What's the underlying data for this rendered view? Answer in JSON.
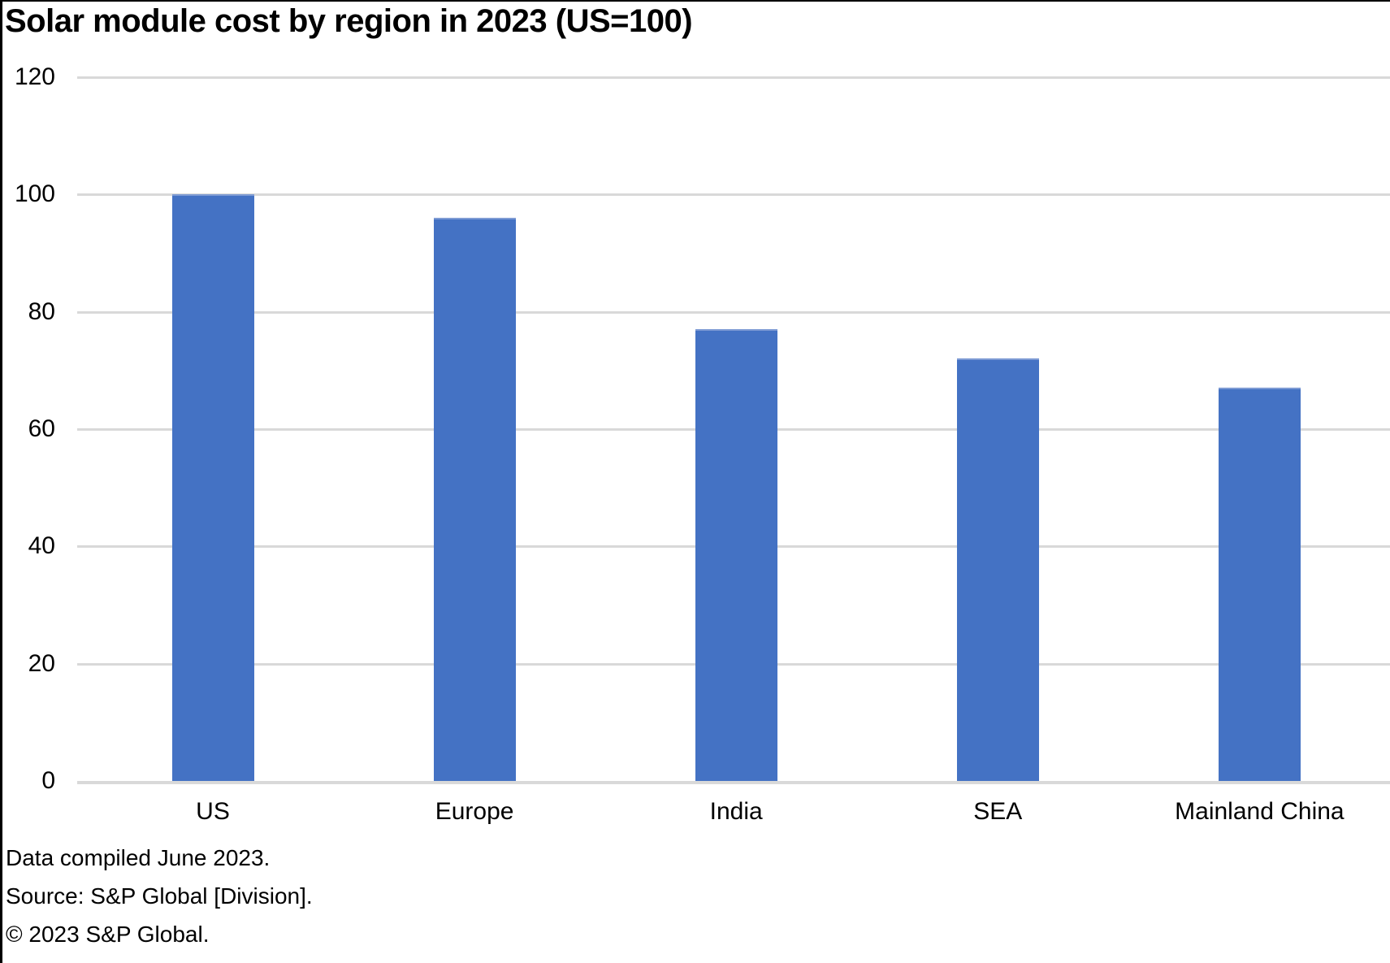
{
  "chart_data": {
    "type": "bar",
    "title": "Solar module cost by region in 2023 (US=100)",
    "categories": [
      "US",
      "Europe",
      "India",
      "SEA",
      "Mainland China"
    ],
    "values": [
      100,
      96,
      77,
      72,
      67
    ],
    "xlabel": "",
    "ylabel": "",
    "ylim": [
      0,
      120
    ],
    "yticks": [
      0,
      20,
      40,
      60,
      80,
      100,
      120
    ],
    "grid": true,
    "legend_position": "none",
    "bar_color": "#4472C4",
    "bar_top_edge_color": "#7E9BD4",
    "gridline_color": "#D9D9D9",
    "axis_line_color": "#D9D9D9",
    "text_color": "#000000"
  },
  "footer": {
    "compiled": "Data compiled June 2023.",
    "source": "Source: S&P Global [Division].",
    "copyright": "© 2023 S&P Global."
  }
}
